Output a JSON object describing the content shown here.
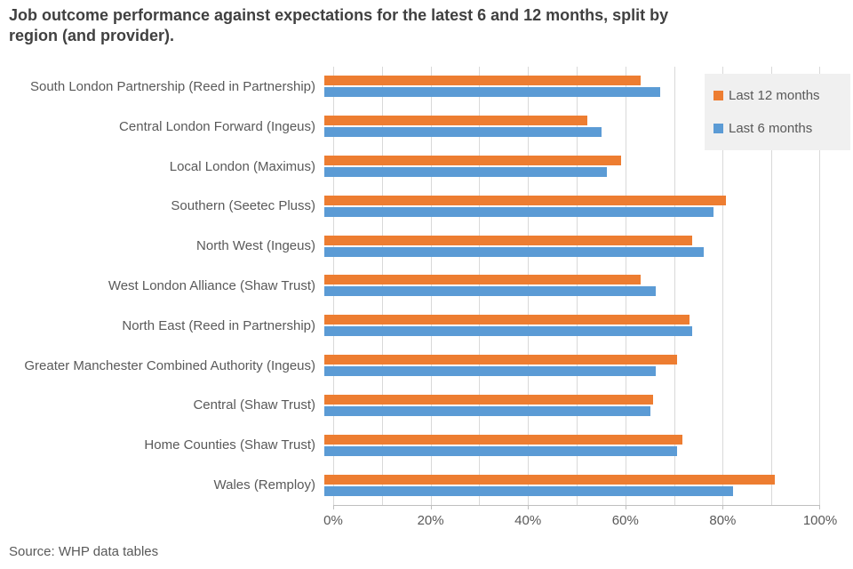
{
  "title": "Job outcome performance against expectations for the latest 6 and 12 months, split by region (and provider).",
  "source": "Source: WHP data tables",
  "legend": {
    "items": [
      {
        "label": "Last 12 months",
        "color": "#ED7D31"
      },
      {
        "label": "Last 6 months",
        "color": "#5B9BD5"
      }
    ]
  },
  "colors": {
    "orange_series": "#ED7D31",
    "blue_series": "#5B9BD5",
    "gridline": "#D9D9D9",
    "axis": "#BFBFBF",
    "title_text": "#404040",
    "label_text": "#595959",
    "legend_background": "#F0F0F0"
  },
  "chart_data": {
    "type": "bar",
    "orientation": "horizontal",
    "title": "Job outcome performance against expectations for the latest 6 and 12 months, split by region (and provider).",
    "categories": [
      "South London Partnership (Reed in Partnership)",
      "Central London Forward (Ingeus)",
      "Local London (Maximus)",
      "Southern (Seetec Pluss)",
      "North West (Ingeus)",
      "West London Alliance (Shaw Trust)",
      "North East (Reed in Partnership)",
      "Greater Manchester Combined Authority (Ingeus)",
      "Central (Shaw Trust)",
      "Home Counties (Shaw Trust)",
      "Wales (Remploy)"
    ],
    "series": [
      {
        "name": "Last 12 months",
        "color": "#ED7D31",
        "values": [
          65,
          54,
          61,
          82.5,
          75.5,
          65,
          75,
          72.5,
          67.5,
          73.5,
          92.5
        ]
      },
      {
        "name": "Last 6 months",
        "color": "#5B9BD5",
        "values": [
          69,
          57,
          58,
          80,
          78,
          68,
          75.5,
          68,
          67,
          72.5,
          84
        ]
      }
    ],
    "xlabel": "",
    "ylabel": "",
    "xlim": [
      0,
      100
    ],
    "x_tick_labels": [
      "0%",
      "20%",
      "40%",
      "60%",
      "80%",
      "100%"
    ],
    "x_tick_interval_pct": 20,
    "gridline_interval_pct": 10,
    "grid": true,
    "legend_position": "top-right",
    "source": "Source: WHP data tables"
  }
}
